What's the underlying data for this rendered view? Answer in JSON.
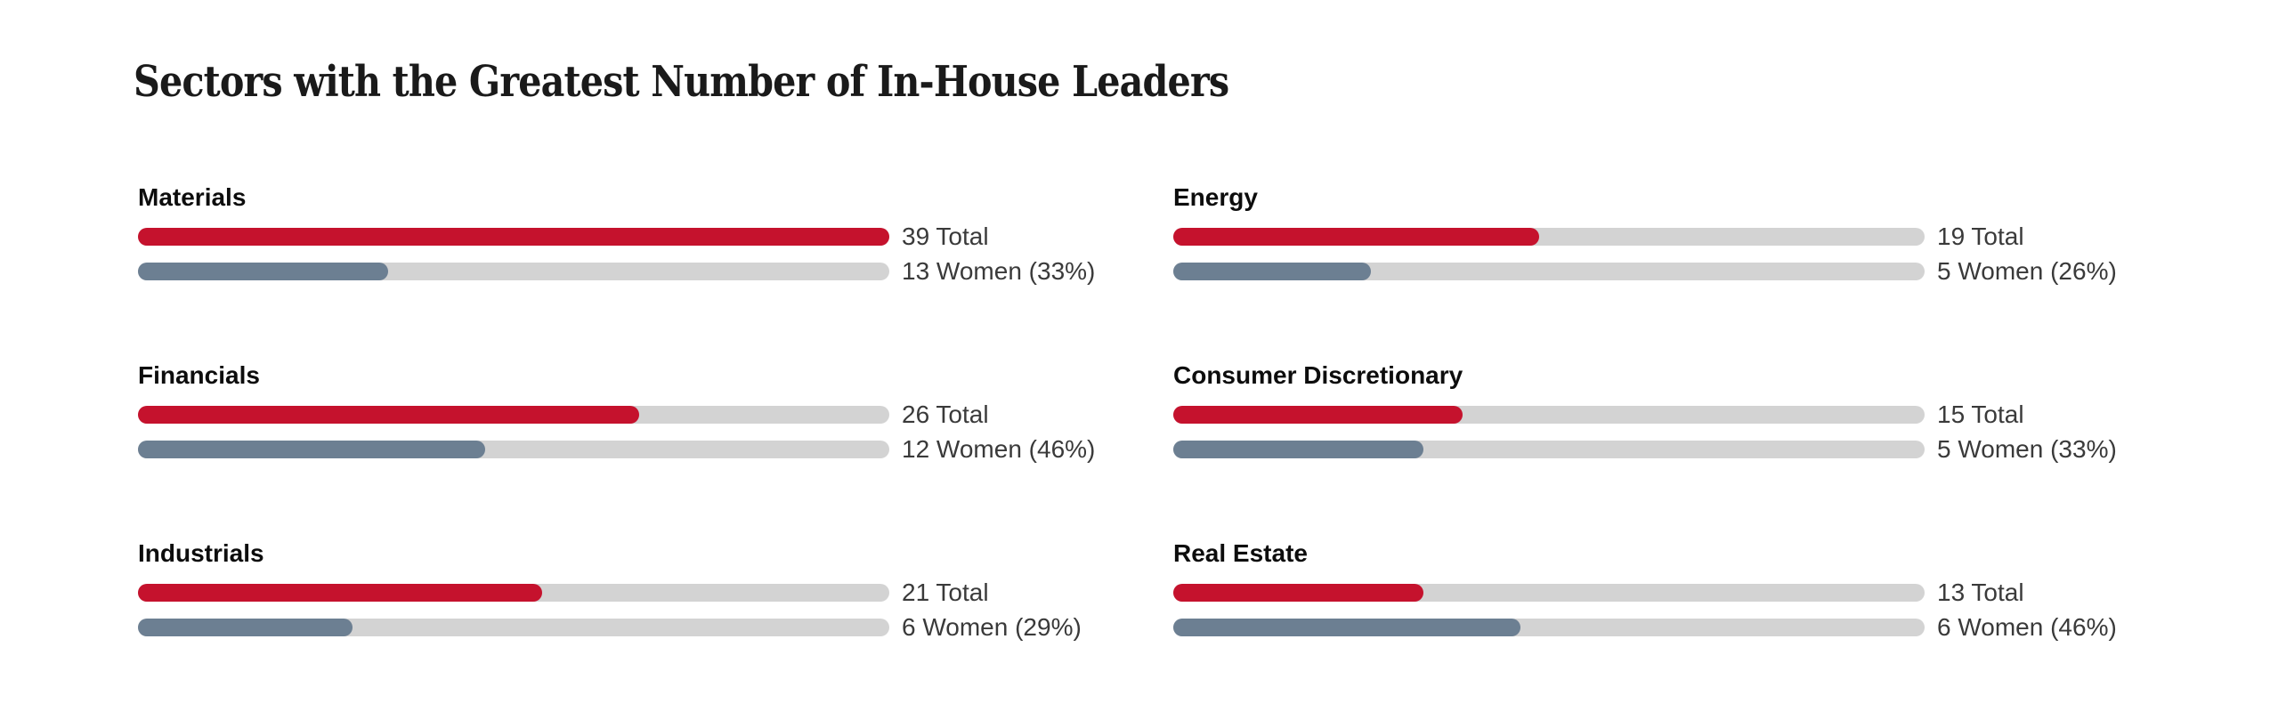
{
  "title": "Sectors with the Greatest Number of In-House Leaders",
  "colors": {
    "background": "#FFFFFF",
    "title_text": "#1A1A1A",
    "sector_label_text": "#0D0D0D",
    "value_text": "#3A3A3A",
    "total_bar": "#C5122D",
    "women_bar": "#6C7F92",
    "bar_track": "#D3D3D3"
  },
  "chart_data": {
    "type": "bar",
    "orientation": "horizontal",
    "title": "Sectors with the Greatest Number of In-House Leaders",
    "layout": "2-column, 3-row grid; each sector shows a pair of rounded progress bars on gray tracks: red bar = total leaders scaled against the max sector total (39), slate bar = share of women scaled against that sector's own total",
    "max_total": 39,
    "series_names": [
      "Total",
      "Women"
    ],
    "sectors": [
      {
        "name": "Materials",
        "total": 39,
        "women": 13,
        "women_pct": 33,
        "total_label": "39 Total",
        "women_label": "13 Women (33%)"
      },
      {
        "name": "Energy",
        "total": 19,
        "women": 5,
        "women_pct": 26,
        "total_label": "19 Total",
        "women_label": "5 Women (26%)"
      },
      {
        "name": "Financials",
        "total": 26,
        "women": 12,
        "women_pct": 46,
        "total_label": "26 Total",
        "women_label": "12 Women (46%)"
      },
      {
        "name": "Consumer Discretionary",
        "total": 15,
        "women": 5,
        "women_pct": 33,
        "total_label": "15 Total",
        "women_label": "5 Women (33%)"
      },
      {
        "name": "Industrials",
        "total": 21,
        "women": 6,
        "women_pct": 29,
        "total_label": "21 Total",
        "women_label": "6 Women (29%)"
      },
      {
        "name": "Real Estate",
        "total": 13,
        "women": 6,
        "women_pct": 46,
        "total_label": "13 Total",
        "women_label": "6 Women (46%)"
      }
    ]
  }
}
